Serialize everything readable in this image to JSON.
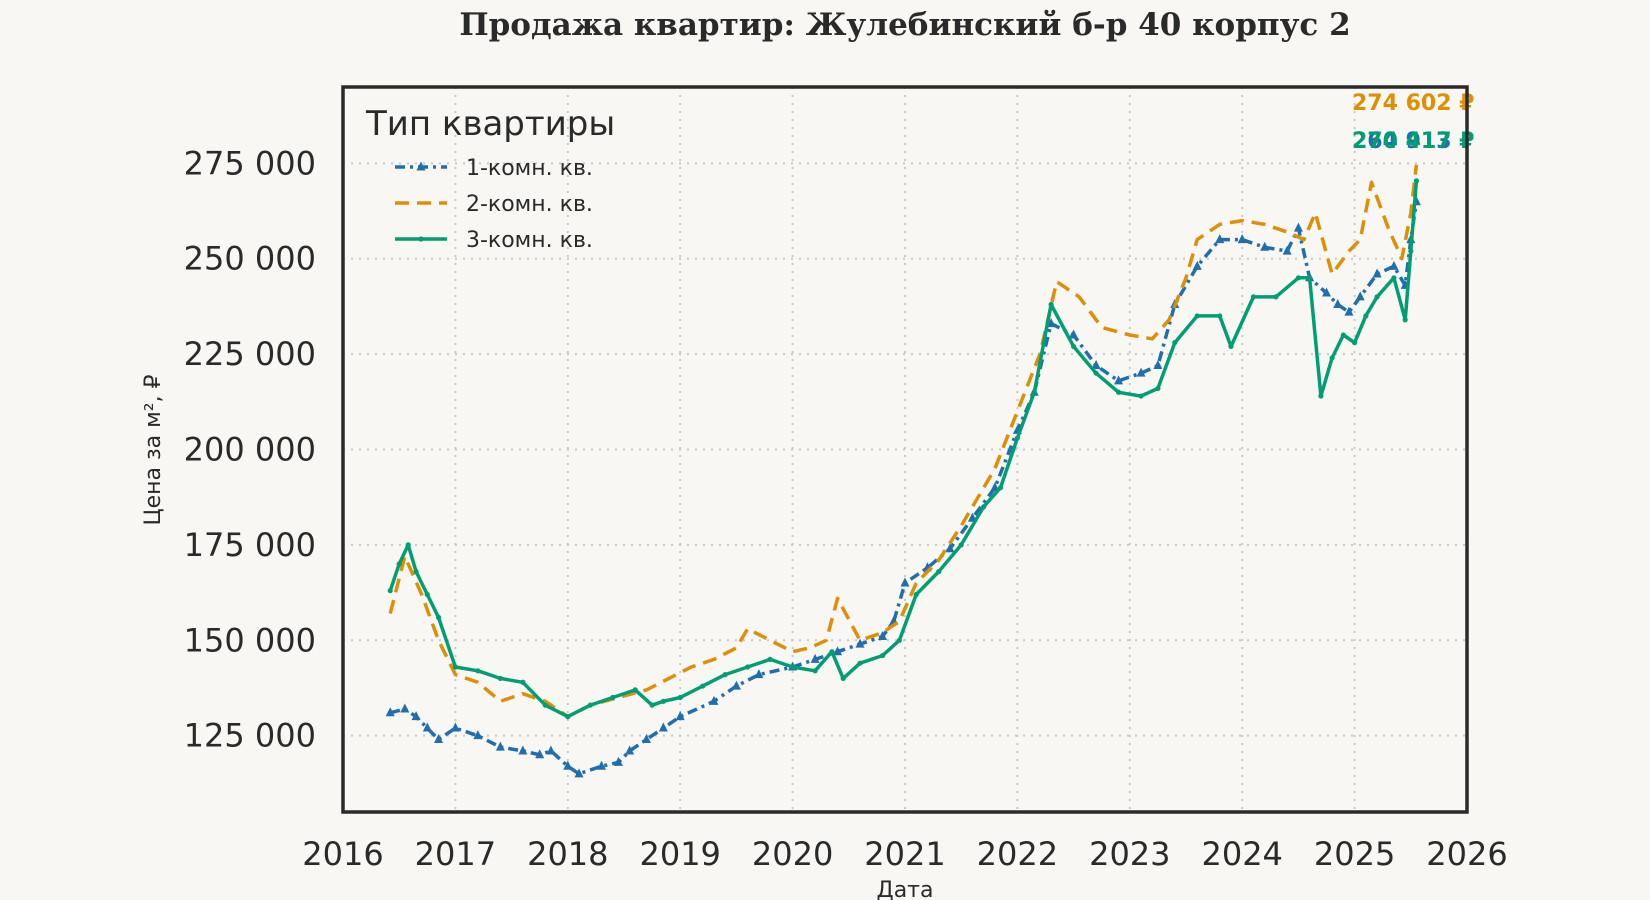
{
  "chart_data": {
    "type": "line",
    "title": "Продажа квартир: Жулебинский б-р 40 корпус 2",
    "xlabel": "Дата",
    "ylabel": "Цена за м², ₽",
    "xlim": [
      2016.0,
      2026.0
    ],
    "ylim": [
      105000,
      295000
    ],
    "x_ticks": [
      "2016",
      "2017",
      "2018",
      "2019",
      "2020",
      "2021",
      "2022",
      "2023",
      "2024",
      "2025",
      "2026"
    ],
    "y_ticks": [
      "125 000",
      "150 000",
      "175 000",
      "200 000",
      "225 000",
      "250 000",
      "275 000"
    ],
    "grid": true,
    "legend": {
      "title": "Тип квартиры",
      "placement": "top-left"
    },
    "series": [
      {
        "name": "1-комн. кв.",
        "color": "#1f6fb0",
        "style": "dashdot-triangle",
        "end_label": "264 913 ₽",
        "x": [
          2016.42,
          2016.55,
          2016.65,
          2016.75,
          2016.85,
          2017.0,
          2017.2,
          2017.4,
          2017.6,
          2017.75,
          2017.85,
          2018.0,
          2018.1,
          2018.3,
          2018.45,
          2018.55,
          2018.7,
          2018.85,
          2019.0,
          2019.3,
          2019.5,
          2019.7,
          2020.0,
          2020.2,
          2020.4,
          2020.6,
          2020.8,
          2020.9,
          2021.0,
          2021.2,
          2021.4,
          2021.6,
          2021.8,
          2022.0,
          2022.15,
          2022.3,
          2022.5,
          2022.7,
          2022.9,
          2023.1,
          2023.25,
          2023.4,
          2023.6,
          2023.8,
          2024.0,
          2024.2,
          2024.4,
          2024.5,
          2024.6,
          2024.75,
          2024.85,
          2024.95,
          2025.05,
          2025.2,
          2025.35,
          2025.45,
          2025.5,
          2025.55
        ],
        "y": [
          131000,
          132000,
          130000,
          127000,
          124000,
          127000,
          125000,
          122000,
          121000,
          120000,
          121000,
          117000,
          115000,
          117000,
          118000,
          121000,
          124000,
          127000,
          130000,
          134000,
          138000,
          141000,
          143000,
          145000,
          147000,
          149000,
          151000,
          155000,
          165000,
          169000,
          174000,
          182000,
          190000,
          205000,
          215000,
          233000,
          230000,
          222000,
          218000,
          220000,
          222000,
          238000,
          248000,
          255000,
          255000,
          253000,
          252000,
          258000,
          245000,
          241000,
          238000,
          236000,
          240000,
          246000,
          248000,
          243000,
          255000,
          264913
        ]
      },
      {
        "name": "2-комн. кв.",
        "color": "#de8f05",
        "style": "dashed",
        "end_label": "274 602 ₽",
        "x": [
          2016.42,
          2016.55,
          2016.7,
          2016.85,
          2017.0,
          2017.2,
          2017.4,
          2017.6,
          2017.8,
          2018.0,
          2018.2,
          2018.45,
          2018.7,
          2018.9,
          2019.1,
          2019.3,
          2019.5,
          2019.6,
          2019.8,
          2020.0,
          2020.15,
          2020.3,
          2020.4,
          2020.6,
          2020.8,
          2020.95,
          2021.1,
          2021.3,
          2021.5,
          2021.7,
          2021.8,
          2022.0,
          2022.2,
          2022.35,
          2022.55,
          2022.75,
          2023.0,
          2023.2,
          2023.35,
          2023.5,
          2023.6,
          2023.8,
          2024.0,
          2024.2,
          2024.4,
          2024.55,
          2024.65,
          2024.8,
          2024.95,
          2025.05,
          2025.15,
          2025.3,
          2025.42,
          2025.5,
          2025.55
        ],
        "y": [
          157000,
          172000,
          162000,
          150000,
          141000,
          139000,
          134000,
          136000,
          134000,
          130000,
          133000,
          135000,
          137000,
          140000,
          143000,
          145000,
          148000,
          153000,
          150000,
          147000,
          148000,
          150000,
          161000,
          150000,
          152000,
          155000,
          165000,
          171000,
          180000,
          190000,
          195000,
          210000,
          225000,
          244000,
          240000,
          232000,
          230000,
          229000,
          234000,
          245000,
          255000,
          259000,
          260000,
          259000,
          257000,
          255000,
          262000,
          246000,
          252000,
          255000,
          270000,
          258000,
          250000,
          262000,
          274602
        ]
      },
      {
        "name": "3-комн. кв.",
        "color": "#029e73",
        "style": "solid-star",
        "end_label": "270 417 ₽",
        "x": [
          2016.42,
          2016.5,
          2016.58,
          2016.65,
          2016.75,
          2016.85,
          2017.0,
          2017.2,
          2017.4,
          2017.6,
          2017.8,
          2018.0,
          2018.2,
          2018.4,
          2018.6,
          2018.75,
          2018.85,
          2019.0,
          2019.2,
          2019.4,
          2019.6,
          2019.8,
          2020.0,
          2020.2,
          2020.35,
          2020.45,
          2020.6,
          2020.8,
          2020.95,
          2021.1,
          2021.3,
          2021.5,
          2021.7,
          2021.85,
          2022.0,
          2022.15,
          2022.3,
          2022.5,
          2022.7,
          2022.9,
          2023.1,
          2023.25,
          2023.4,
          2023.6,
          2023.8,
          2023.9,
          2024.1,
          2024.3,
          2024.5,
          2024.6,
          2024.7,
          2024.8,
          2024.9,
          2025.0,
          2025.1,
          2025.2,
          2025.35,
          2025.45,
          2025.5,
          2025.55
        ],
        "y": [
          163000,
          170000,
          175000,
          168000,
          162000,
          156000,
          143000,
          142000,
          140000,
          139000,
          133000,
          130000,
          133000,
          135000,
          137000,
          133000,
          134000,
          135000,
          138000,
          141000,
          143000,
          145000,
          143000,
          142000,
          147000,
          140000,
          144000,
          146000,
          150000,
          162000,
          168000,
          175000,
          185000,
          190000,
          203000,
          215000,
          238000,
          227000,
          220000,
          215000,
          214000,
          216000,
          228000,
          235000,
          235000,
          227000,
          240000,
          240000,
          245000,
          245000,
          214000,
          224000,
          230000,
          228000,
          235000,
          240000,
          245000,
          234000,
          252000,
          270417
        ]
      }
    ]
  }
}
